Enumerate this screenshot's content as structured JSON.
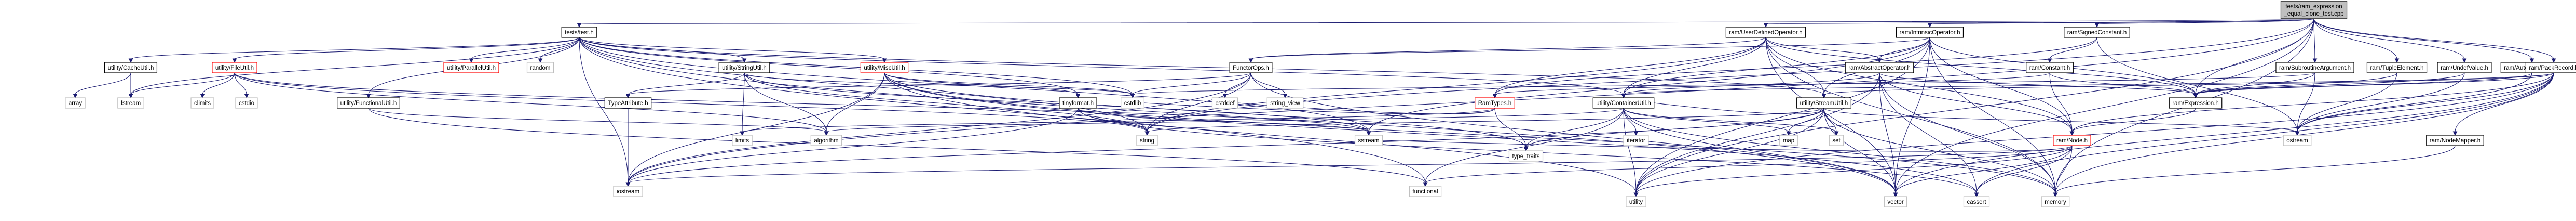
{
  "graph": {
    "root": "tests/ram_expression_equal_clone_test.cpp",
    "edge_color": "#191970",
    "box_border_color": "#000000",
    "root_fill_color": "#bfbfbf",
    "documented_border_color": "#ff0000",
    "nodes": [
      {
        "id": "root",
        "lines": [
          "tests/ram_expression",
          "_equal_clone_test.cpp"
        ],
        "kind": "root"
      },
      {
        "id": "tests_test",
        "lines": [
          "tests/test.h"
        ],
        "kind": "box"
      },
      {
        "id": "ram_user_defined",
        "lines": [
          "ram/UserDefinedOperator.h"
        ],
        "kind": "box"
      },
      {
        "id": "ram_intrinsic",
        "lines": [
          "ram/IntrinsicOperator.h"
        ],
        "kind": "box"
      },
      {
        "id": "ram_signed_constant",
        "lines": [
          "ram/SignedConstant.h"
        ],
        "kind": "box"
      },
      {
        "id": "ram_constant",
        "lines": [
          "ram/Constant.h"
        ],
        "kind": "box"
      },
      {
        "id": "ram_subroutine_argument",
        "lines": [
          "ram/SubroutineArgument.h"
        ],
        "kind": "box"
      },
      {
        "id": "ram_tuple_element",
        "lines": [
          "ram/TupleElement.h"
        ],
        "kind": "box"
      },
      {
        "id": "ram_undef_value",
        "lines": [
          "ram/UndefValue.h"
        ],
        "kind": "box"
      },
      {
        "id": "ram_auto_increment",
        "lines": [
          "ram/AutoIncrement.h"
        ],
        "kind": "box"
      },
      {
        "id": "ram_pack_record",
        "lines": [
          "ram/PackRecord.h"
        ],
        "kind": "box"
      },
      {
        "id": "ram_abstract_operator",
        "lines": [
          "ram/AbstractOperator.h"
        ],
        "kind": "box"
      },
      {
        "id": "functor_ops",
        "lines": [
          "FunctorOps.h"
        ],
        "kind": "box"
      },
      {
        "id": "util_cache",
        "lines": [
          "utility/CacheUtil.h"
        ],
        "kind": "box"
      },
      {
        "id": "util_file",
        "lines": [
          "utility/FileUtil.h"
        ],
        "kind": "doc"
      },
      {
        "id": "util_parallel",
        "lines": [
          "utility/ParallelUtil.h"
        ],
        "kind": "doc"
      },
      {
        "id": "util_string",
        "lines": [
          "utility/StringUtil.h"
        ],
        "kind": "box"
      },
      {
        "id": "util_misc",
        "lines": [
          "utility/MiscUtil.h"
        ],
        "kind": "doc"
      },
      {
        "id": "util_functional",
        "lines": [
          "utility/FunctionalUtil.h"
        ],
        "kind": "box"
      },
      {
        "id": "tinyformat",
        "lines": [
          "tinyformat.h"
        ],
        "kind": "box"
      },
      {
        "id": "type_attribute",
        "lines": [
          "TypeAttribute.h"
        ],
        "kind": "box"
      },
      {
        "id": "ram_types",
        "lines": [
          "RamTypes.h"
        ],
        "kind": "doc"
      },
      {
        "id": "util_container",
        "lines": [
          "utility/ContainerUtil.h"
        ],
        "kind": "box"
      },
      {
        "id": "util_stream",
        "lines": [
          "utility/StreamUtil.h"
        ],
        "kind": "box"
      },
      {
        "id": "ram_expression",
        "lines": [
          "ram/Expression.h"
        ],
        "kind": "box"
      },
      {
        "id": "ram_node",
        "lines": [
          "ram/Node.h"
        ],
        "kind": "doc"
      },
      {
        "id": "ram_node_mapper",
        "lines": [
          "ram/NodeMapper.h"
        ],
        "kind": "box"
      },
      {
        "id": "std_array",
        "lines": [
          "array"
        ],
        "kind": "plain"
      },
      {
        "id": "std_fstream",
        "lines": [
          "fstream"
        ],
        "kind": "plain"
      },
      {
        "id": "std_climits",
        "lines": [
          "climits"
        ],
        "kind": "plain"
      },
      {
        "id": "std_cstdio",
        "lines": [
          "cstdio"
        ],
        "kind": "plain"
      },
      {
        "id": "std_random",
        "lines": [
          "random"
        ],
        "kind": "plain"
      },
      {
        "id": "std_cstddef",
        "lines": [
          "cstddef"
        ],
        "kind": "plain"
      },
      {
        "id": "std_string_view",
        "lines": [
          "string_view"
        ],
        "kind": "plain"
      },
      {
        "id": "std_cstdlib",
        "lines": [
          "cstdlib"
        ],
        "kind": "plain"
      },
      {
        "id": "std_limits",
        "lines": [
          "limits"
        ],
        "kind": "plain"
      },
      {
        "id": "std_algorithm",
        "lines": [
          "algorithm"
        ],
        "kind": "plain"
      },
      {
        "id": "std_string",
        "lines": [
          "string"
        ],
        "kind": "plain"
      },
      {
        "id": "std_sstream",
        "lines": [
          "sstream"
        ],
        "kind": "plain"
      },
      {
        "id": "std_iterator",
        "lines": [
          "iterator"
        ],
        "kind": "plain"
      },
      {
        "id": "std_map",
        "lines": [
          "map"
        ],
        "kind": "plain"
      },
      {
        "id": "std_set",
        "lines": [
          "set"
        ],
        "kind": "plain"
      },
      {
        "id": "std_type_traits",
        "lines": [
          "type_traits"
        ],
        "kind": "plain"
      },
      {
        "id": "std_ostream",
        "lines": [
          "ostream"
        ],
        "kind": "plain"
      },
      {
        "id": "std_iostream",
        "lines": [
          "iostream"
        ],
        "kind": "plain"
      },
      {
        "id": "std_functional",
        "lines": [
          "functional"
        ],
        "kind": "plain"
      },
      {
        "id": "std_utility",
        "lines": [
          "utility"
        ],
        "kind": "plain"
      },
      {
        "id": "std_vector",
        "lines": [
          "vector"
        ],
        "kind": "plain"
      },
      {
        "id": "std_cassert",
        "lines": [
          "cassert"
        ],
        "kind": "plain"
      },
      {
        "id": "std_memory",
        "lines": [
          "memory"
        ],
        "kind": "plain"
      }
    ],
    "edges": [
      [
        "root",
        "tests_test"
      ],
      [
        "root",
        "ram_user_defined"
      ],
      [
        "root",
        "ram_intrinsic"
      ],
      [
        "root",
        "ram_signed_constant"
      ],
      [
        "root",
        "ram_subroutine_argument"
      ],
      [
        "root",
        "ram_tuple_element"
      ],
      [
        "root",
        "ram_undef_value"
      ],
      [
        "root",
        "ram_auto_increment"
      ],
      [
        "root",
        "ram_pack_record"
      ],
      [
        "root",
        "ram_expression"
      ],
      [
        "root",
        "std_iostream"
      ],
      [
        "root",
        "std_string"
      ],
      [
        "root",
        "std_vector"
      ],
      [
        "root",
        "std_memory"
      ],
      [
        "root",
        "std_utility"
      ],
      [
        "tests_test",
        "util_cache"
      ],
      [
        "tests_test",
        "util_file"
      ],
      [
        "tests_test",
        "util_parallel"
      ],
      [
        "tests_test",
        "util_string"
      ],
      [
        "tests_test",
        "util_misc"
      ],
      [
        "tests_test",
        "util_functional"
      ],
      [
        "tests_test",
        "std_random"
      ],
      [
        "tests_test",
        "tinyformat"
      ],
      [
        "tests_test",
        "std_string"
      ],
      [
        "tests_test",
        "std_sstream"
      ],
      [
        "tests_test",
        "std_iostream"
      ],
      [
        "tests_test",
        "std_functional"
      ],
      [
        "tests_test",
        "std_vector"
      ],
      [
        "tests_test",
        "std_fstream"
      ],
      [
        "tests_test",
        "util_container"
      ],
      [
        "tests_test",
        "util_stream"
      ],
      [
        "tests_test",
        "std_cstdlib"
      ],
      [
        "util_cache",
        "std_array"
      ],
      [
        "util_cache",
        "std_fstream"
      ],
      [
        "util_file",
        "std_climits"
      ],
      [
        "util_file",
        "std_cstdio"
      ],
      [
        "util_file",
        "std_fstream"
      ],
      [
        "util_file",
        "std_algorithm"
      ],
      [
        "util_file",
        "std_sstream"
      ],
      [
        "util_file",
        "std_string"
      ],
      [
        "util_string",
        "std_algorithm"
      ],
      [
        "util_string",
        "std_limits"
      ],
      [
        "util_string",
        "std_sstream"
      ],
      [
        "util_string",
        "std_string"
      ],
      [
        "util_string",
        "type_attribute"
      ],
      [
        "util_string",
        "std_cstdlib"
      ],
      [
        "util_misc",
        "tinyformat"
      ],
      [
        "util_misc",
        "std_algorithm"
      ],
      [
        "util_misc",
        "std_cassert"
      ],
      [
        "util_misc",
        "std_iostream"
      ],
      [
        "util_misc",
        "std_memory"
      ],
      [
        "util_misc",
        "std_utility"
      ],
      [
        "util_misc",
        "std_cstdlib"
      ],
      [
        "util_misc",
        "std_type_traits"
      ],
      [
        "util_functional",
        "std_functional"
      ],
      [
        "util_functional",
        "std_algorithm"
      ],
      [
        "tinyformat",
        "std_cassert"
      ],
      [
        "tinyformat",
        "std_iostream"
      ],
      [
        "tinyformat",
        "std_sstream"
      ],
      [
        "tinyformat",
        "std_string"
      ],
      [
        "type_attribute",
        "std_iostream"
      ],
      [
        "ram_user_defined",
        "ram_abstract_operator"
      ],
      [
        "ram_user_defined",
        "functor_ops"
      ],
      [
        "ram_user_defined",
        "ram_types"
      ],
      [
        "ram_user_defined",
        "util_container"
      ],
      [
        "ram_user_defined",
        "util_stream"
      ],
      [
        "ram_user_defined",
        "ram_expression"
      ],
      [
        "ram_user_defined",
        "ram_node"
      ],
      [
        "ram_user_defined",
        "std_string"
      ],
      [
        "ram_user_defined",
        "std_vector"
      ],
      [
        "ram_user_defined",
        "std_memory"
      ],
      [
        "ram_intrinsic",
        "ram_abstract_operator"
      ],
      [
        "ram_intrinsic",
        "functor_ops"
      ],
      [
        "ram_intrinsic",
        "util_container"
      ],
      [
        "ram_intrinsic",
        "util_stream"
      ],
      [
        "ram_intrinsic",
        "ram_expression"
      ],
      [
        "ram_intrinsic",
        "ram_node"
      ],
      [
        "ram_intrinsic",
        "std_sstream"
      ],
      [
        "ram_intrinsic",
        "std_vector"
      ],
      [
        "ram_intrinsic",
        "std_memory"
      ],
      [
        "ram_intrinsic",
        "std_utility"
      ],
      [
        "functor_ops",
        "std_cstddef"
      ],
      [
        "functor_ops",
        "std_string_view"
      ],
      [
        "functor_ops",
        "std_cstdlib"
      ],
      [
        "functor_ops",
        "std_iostream"
      ],
      [
        "functor_ops",
        "std_string"
      ],
      [
        "functor_ops",
        "std_vector"
      ],
      [
        "functor_ops",
        "type_attribute"
      ],
      [
        "ram_abstract_operator",
        "util_container"
      ],
      [
        "ram_abstract_operator",
        "ram_expression"
      ],
      [
        "ram_abstract_operator",
        "ram_node"
      ],
      [
        "ram_abstract_operator",
        "std_cassert"
      ],
      [
        "ram_abstract_operator",
        "std_memory"
      ],
      [
        "ram_abstract_operator",
        "std_vector"
      ],
      [
        "ram_abstract_operator",
        "std_utility"
      ],
      [
        "ram_signed_constant",
        "ram_constant"
      ],
      [
        "ram_signed_constant",
        "ram_types"
      ],
      [
        "ram_signed_constant",
        "std_ostream"
      ],
      [
        "ram_constant",
        "ram_expression"
      ],
      [
        "ram_constant",
        "ram_node"
      ],
      [
        "ram_constant",
        "ram_types"
      ],
      [
        "ram_types",
        "std_cstdlib"
      ],
      [
        "ram_types",
        "std_limits"
      ],
      [
        "ram_types",
        "std_type_traits"
      ],
      [
        "ram_types",
        "std_cstddef"
      ],
      [
        "util_container",
        "std_map"
      ],
      [
        "util_container",
        "std_set"
      ],
      [
        "util_container",
        "std_iterator"
      ],
      [
        "util_container",
        "std_type_traits"
      ],
      [
        "util_container",
        "std_vector"
      ],
      [
        "util_container",
        "std_utility"
      ],
      [
        "util_container",
        "std_memory"
      ],
      [
        "util_container",
        "std_functional"
      ],
      [
        "util_container",
        "std_algorithm"
      ],
      [
        "util_stream",
        "std_map"
      ],
      [
        "util_stream",
        "std_set"
      ],
      [
        "util_stream",
        "std_ostream"
      ],
      [
        "util_stream",
        "std_string"
      ],
      [
        "util_stream",
        "std_vector"
      ],
      [
        "util_stream",
        "std_utility"
      ],
      [
        "util_stream",
        "std_memory"
      ],
      [
        "util_stream",
        "std_type_traits"
      ],
      [
        "util_stream",
        "util_container"
      ],
      [
        "util_stream",
        "std_iostream"
      ],
      [
        "ram_subroutine_argument",
        "ram_expression"
      ],
      [
        "ram_subroutine_argument",
        "std_ostream"
      ],
      [
        "ram_subroutine_argument",
        "std_cstdlib"
      ],
      [
        "ram_tuple_element",
        "ram_expression"
      ],
      [
        "ram_tuple_element",
        "std_ostream"
      ],
      [
        "ram_undef_value",
        "ram_expression"
      ],
      [
        "ram_undef_value",
        "std_ostream"
      ],
      [
        "ram_auto_increment",
        "ram_expression"
      ],
      [
        "ram_auto_increment",
        "std_ostream"
      ],
      [
        "ram_pack_record",
        "ram_expression"
      ],
      [
        "ram_pack_record",
        "ram_node"
      ],
      [
        "ram_pack_record",
        "ram_node_mapper"
      ],
      [
        "ram_pack_record",
        "util_container"
      ],
      [
        "ram_pack_record",
        "util_stream"
      ],
      [
        "ram_pack_record",
        "std_cassert"
      ],
      [
        "ram_pack_record",
        "std_memory"
      ],
      [
        "ram_pack_record",
        "std_ostream"
      ],
      [
        "ram_pack_record",
        "std_vector"
      ],
      [
        "ram_pack_record",
        "std_utility"
      ],
      [
        "ram_expression",
        "ram_node"
      ],
      [
        "ram_node",
        "std_cassert"
      ],
      [
        "ram_node",
        "std_memory"
      ],
      [
        "ram_node",
        "std_vector"
      ],
      [
        "ram_node",
        "std_functional"
      ],
      [
        "ram_node",
        "std_sstream"
      ],
      [
        "ram_node",
        "std_iostream"
      ],
      [
        "ram_node",
        "std_utility"
      ],
      [
        "ram_node_mapper",
        "std_memory"
      ]
    ]
  }
}
